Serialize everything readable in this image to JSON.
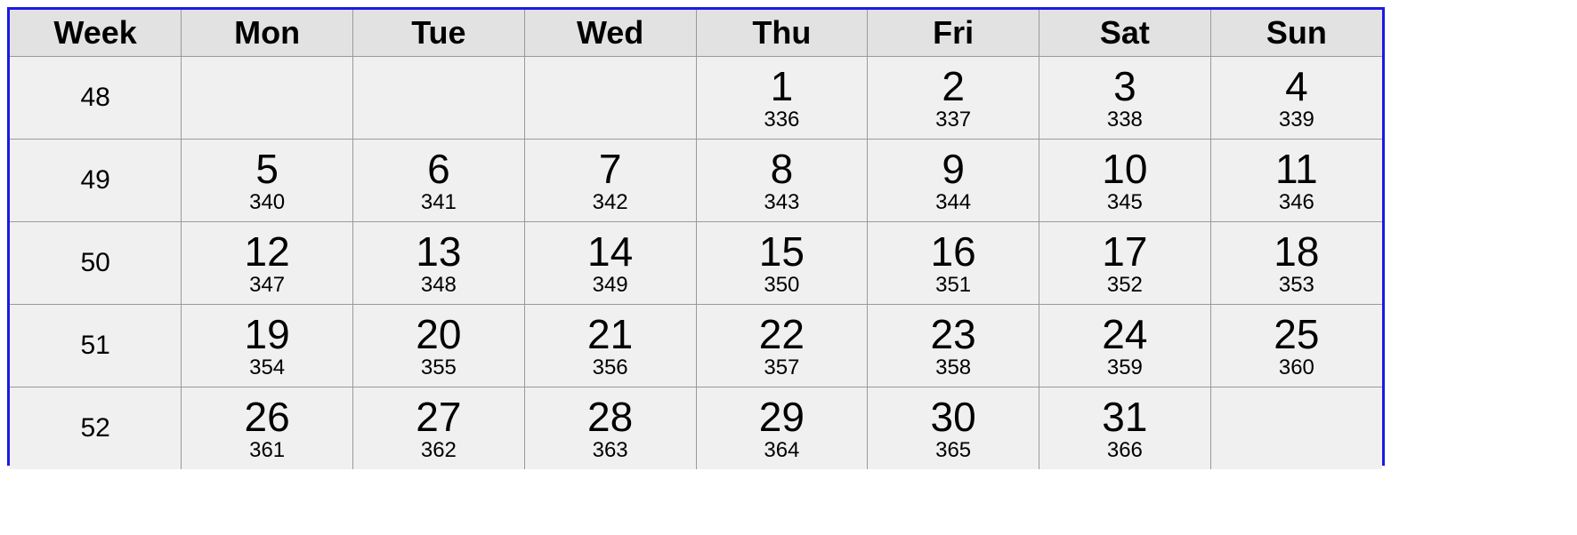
{
  "header": {
    "week": "Week",
    "days": [
      "Mon",
      "Tue",
      "Wed",
      "Thu",
      "Fri",
      "Sat",
      "Sun"
    ]
  },
  "weeks": [
    {
      "week": "48",
      "days": [
        {
          "day": "",
          "doy": ""
        },
        {
          "day": "",
          "doy": ""
        },
        {
          "day": "",
          "doy": ""
        },
        {
          "day": "1",
          "doy": "336"
        },
        {
          "day": "2",
          "doy": "337"
        },
        {
          "day": "3",
          "doy": "338"
        },
        {
          "day": "4",
          "doy": "339"
        }
      ]
    },
    {
      "week": "49",
      "days": [
        {
          "day": "5",
          "doy": "340"
        },
        {
          "day": "6",
          "doy": "341"
        },
        {
          "day": "7",
          "doy": "342"
        },
        {
          "day": "8",
          "doy": "343"
        },
        {
          "day": "9",
          "doy": "344"
        },
        {
          "day": "10",
          "doy": "345"
        },
        {
          "day": "11",
          "doy": "346"
        }
      ]
    },
    {
      "week": "50",
      "days": [
        {
          "day": "12",
          "doy": "347"
        },
        {
          "day": "13",
          "doy": "348"
        },
        {
          "day": "14",
          "doy": "349"
        },
        {
          "day": "15",
          "doy": "350"
        },
        {
          "day": "16",
          "doy": "351"
        },
        {
          "day": "17",
          "doy": "352"
        },
        {
          "day": "18",
          "doy": "353"
        }
      ]
    },
    {
      "week": "51",
      "days": [
        {
          "day": "19",
          "doy": "354"
        },
        {
          "day": "20",
          "doy": "355"
        },
        {
          "day": "21",
          "doy": "356"
        },
        {
          "day": "22",
          "doy": "357"
        },
        {
          "day": "23",
          "doy": "358"
        },
        {
          "day": "24",
          "doy": "359"
        },
        {
          "day": "25",
          "doy": "360"
        }
      ]
    },
    {
      "week": "52",
      "days": [
        {
          "day": "26",
          "doy": "361"
        },
        {
          "day": "27",
          "doy": "362"
        },
        {
          "day": "28",
          "doy": "363"
        },
        {
          "day": "29",
          "doy": "364"
        },
        {
          "day": "30",
          "doy": "365"
        },
        {
          "day": "31",
          "doy": "366"
        },
        {
          "day": "",
          "doy": ""
        }
      ]
    }
  ],
  "colors": {
    "border": "#1a1ae6",
    "header_bg": "#e2e2e2",
    "cell_bg": "#f0f0f0",
    "grid": "#9a9a9a"
  }
}
